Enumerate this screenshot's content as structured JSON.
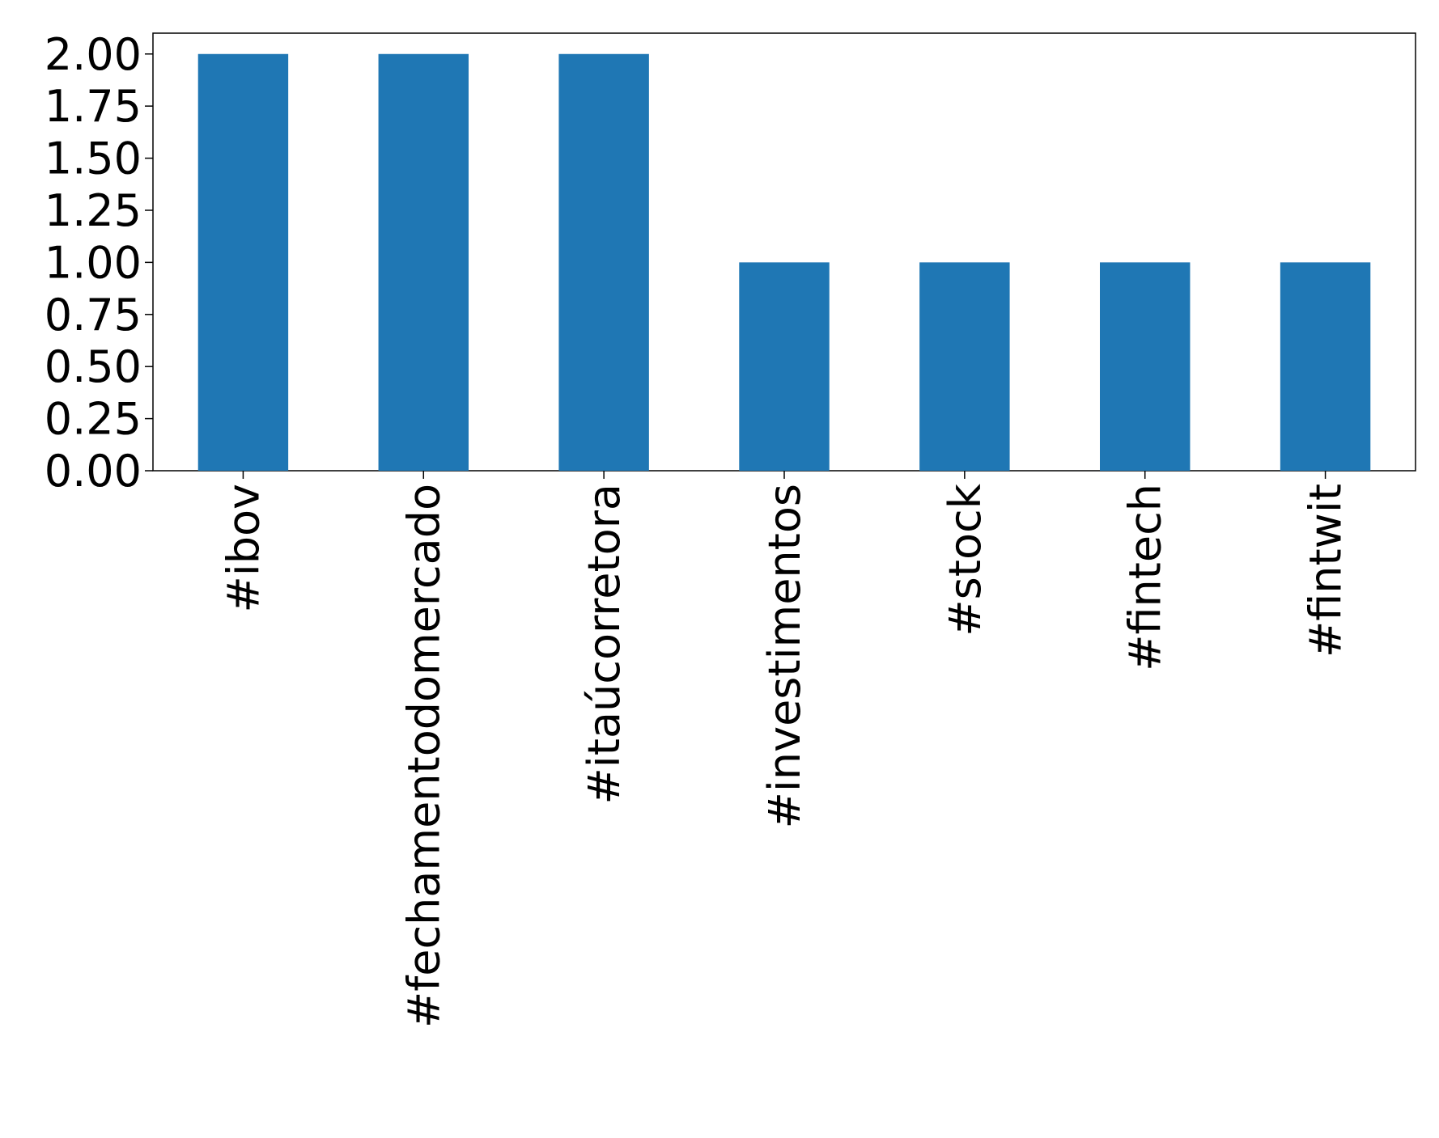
{
  "chart_data": {
    "type": "bar",
    "categories": [
      "#ibov",
      "#fechamentodomercado",
      "#itaúcorretora",
      "#investimentos",
      "#stock",
      "#fintech",
      "#fintwit"
    ],
    "values": [
      2,
      2,
      2,
      1,
      1,
      1,
      1
    ],
    "color": "#1f77b4",
    "ylim": [
      0,
      2.1
    ],
    "yticks": [
      {
        "value": 0,
        "label": "0.00"
      },
      {
        "value": 0.25,
        "label": "0.25"
      },
      {
        "value": 0.5,
        "label": "0.50"
      },
      {
        "value": 0.75,
        "label": "0.75"
      },
      {
        "value": 1,
        "label": "1.00"
      },
      {
        "value": 1.25,
        "label": "1.25"
      },
      {
        "value": 1.5,
        "label": "1.50"
      },
      {
        "value": 1.75,
        "label": "1.75"
      },
      {
        "value": 2,
        "label": "2.00"
      }
    ],
    "grid": false
  }
}
